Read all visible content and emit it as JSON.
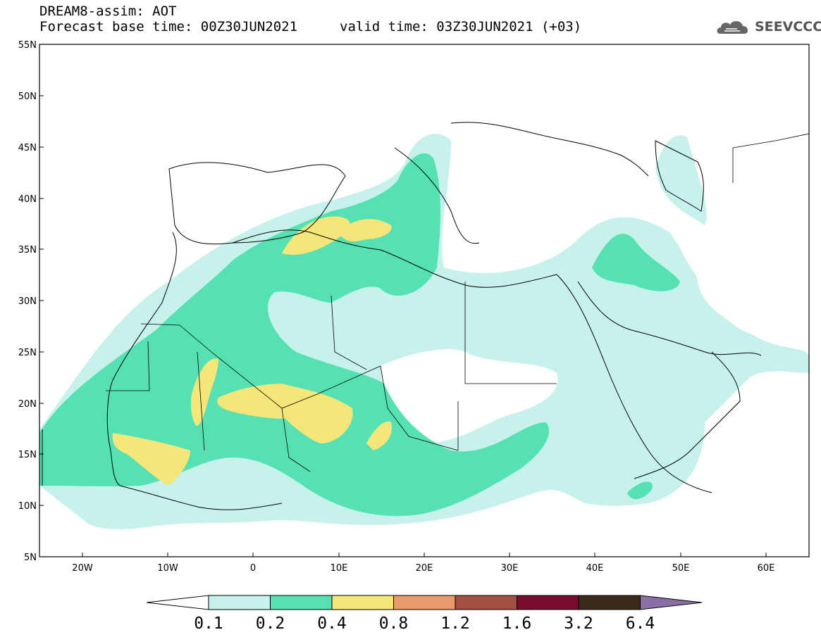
{
  "title": {
    "line1": "DREAM8-assim: AOT",
    "line2": "Forecast base time: 00Z30JUN2021",
    "line2b": "valid time: 03Z30JUN2021 (+03)"
  },
  "logo": {
    "text": "SEEVCCC",
    "icon": "cloud-logo-icon"
  },
  "map": {
    "lat_labels": [
      "55N",
      "50N",
      "45N",
      "40N",
      "35N",
      "30N",
      "25N",
      "20N",
      "15N",
      "10N",
      "5N"
    ],
    "lon_labels": [
      "20W",
      "10W",
      "0",
      "10E",
      "20E",
      "30E",
      "40E",
      "50E",
      "60E"
    ],
    "extent": {
      "lon_min": -25,
      "lon_max": 65,
      "lat_min": 5,
      "lat_max": 55
    }
  },
  "colorbar": {
    "labels": [
      "0.1",
      "0.2",
      "0.4",
      "0.8",
      "1.2",
      "1.6",
      "3.2",
      "6.4"
    ],
    "colors": [
      "#ffffff",
      "#c6f2eb",
      "#55e1b3",
      "#f5e67a",
      "#e89a6e",
      "#a14f3f",
      "#7a0d2b",
      "#3b2a19",
      "#8a6ea6"
    ]
  },
  "colors": {
    "low": "#c6f2eb",
    "mid": "#55e1b3",
    "high": "#f5e67a"
  }
}
